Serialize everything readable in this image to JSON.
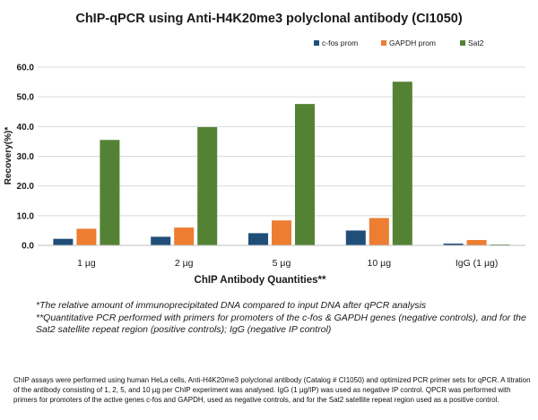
{
  "chart_data": {
    "type": "bar",
    "title": "ChIP-qPCR using Anti-H4K20me3 polyclonal antibody (CI1050)",
    "xlabel": "ChIP Antibody Quantities**",
    "ylabel": "Recovery(%)*",
    "ylim": [
      0,
      60
    ],
    "yticks": [
      "0.0",
      "10.0",
      "20.0",
      "30.0",
      "40.0",
      "50.0",
      "60.0"
    ],
    "grid": true,
    "legend_position": "top-right",
    "categories": [
      "1 µg",
      "2 µg",
      "5 µg",
      "10 µg",
      "IgG (1 µg)"
    ],
    "series": [
      {
        "name": "c-fos prom",
        "color": "#1f4e79",
        "values": [
          2.2,
          2.9,
          4.1,
          5.0,
          0.6
        ]
      },
      {
        "name": "GAPDH prom",
        "color": "#ed7d31",
        "values": [
          5.6,
          6.0,
          8.4,
          9.2,
          1.8
        ]
      },
      {
        "name": "Sat2",
        "color": "#548235",
        "values": [
          35.5,
          39.8,
          47.6,
          55.1,
          0.3
        ]
      }
    ]
  },
  "footnotes": [
    "*The relative amount of immunoprecipitated DNA compared to input DNA after qPCR analysis",
    "**Quantitative PCR performed with primers for promoters of the c-fos & GAPDH genes (negative controls), and for the Sat2 satellite repeat region (positive controls); IgG (negative IP control)"
  ],
  "caption": "ChIP assays were performed using human HeLa cells, Anti-H4K20me3 polyclonal antibody (Catalog # CI1050) and optimized PCR primer sets for qPCR. A titration of the antibody consisting of 1, 2, 5, and 10 µg per ChIP experiment was analysed. IgG (1 µg/IP) was used as negative IP control. QPCR was performed with primers for promoters of the active genes c-fos and GAPDH, used as negative controls, and for the Sat2 satellite repeat region used as a positive control."
}
